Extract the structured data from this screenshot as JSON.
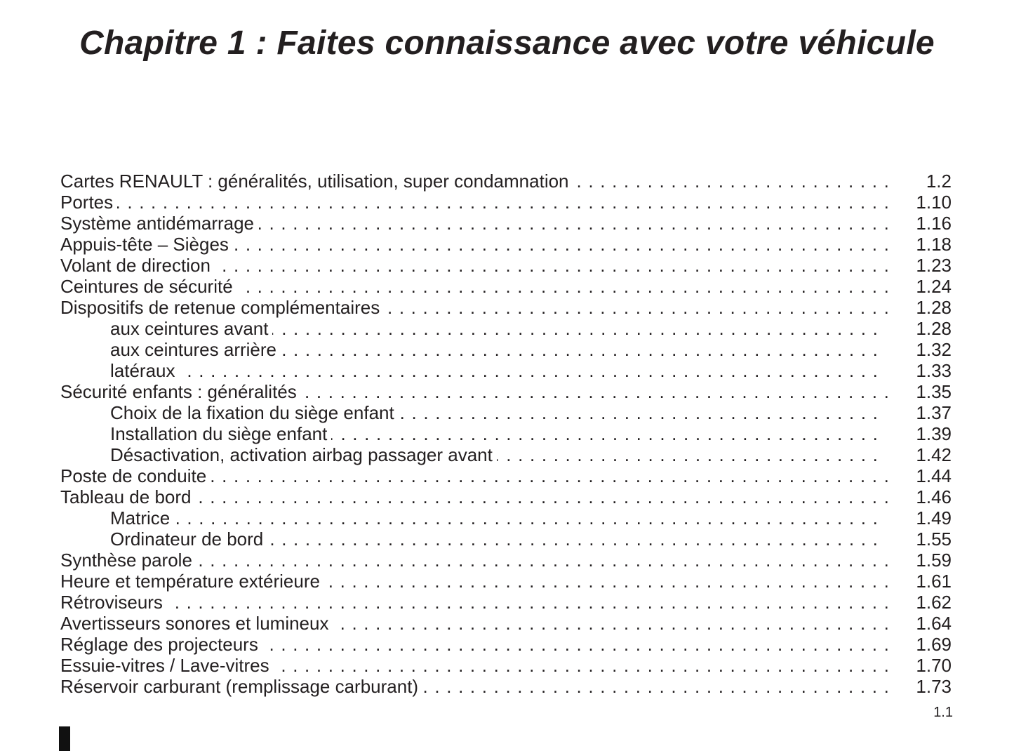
{
  "title": "Chapitre 1 : Faites connaissance avec votre véhicule",
  "toc": [
    {
      "label": "Cartes RENAULT : généralités, utilisation, super condamnation",
      "page": "1.2",
      "level": 1
    },
    {
      "label": "Portes",
      "page": "1.10",
      "level": 1
    },
    {
      "label": "Système antidémarrage",
      "page": "1.16",
      "level": 1
    },
    {
      "label": "Appuis-tête – Sièges",
      "page": "1.18",
      "level": 1
    },
    {
      "label": "Volant de direction",
      "page": "1.23",
      "level": 1
    },
    {
      "label": "Ceintures de sécurité",
      "page": "1.24",
      "level": 1
    },
    {
      "label": "Dispositifs de retenue complémentaires",
      "page": "1.28",
      "level": 1
    },
    {
      "label": "aux ceintures avant",
      "page": "1.28",
      "level": 2
    },
    {
      "label": "aux ceintures arrière",
      "page": "1.32",
      "level": 2
    },
    {
      "label": "latéraux",
      "page": "1.33",
      "level": 2
    },
    {
      "label": "Sécurité enfants : généralités",
      "page": "1.35",
      "level": 1
    },
    {
      "label": "Choix de la fixation du siège enfant",
      "page": "1.37",
      "level": 2
    },
    {
      "label": "Installation du siège enfant",
      "page": "1.39",
      "level": 2
    },
    {
      "label": "Désactivation, activation airbag passager avant",
      "page": "1.42",
      "level": 2
    },
    {
      "label": "Poste de conduite",
      "page": "1.44",
      "level": 1
    },
    {
      "label": "Tableau de bord",
      "page": "1.46",
      "level": 1
    },
    {
      "label": "Matrice",
      "page": "1.49",
      "level": 2
    },
    {
      "label": "Ordinateur de bord",
      "page": "1.55",
      "level": 2
    },
    {
      "label": "Synthèse parole",
      "page": "1.59",
      "level": 1
    },
    {
      "label": "Heure et température extérieure",
      "page": "1.61",
      "level": 1
    },
    {
      "label": "Rétroviseurs",
      "page": "1.62",
      "level": 1
    },
    {
      "label": "Avertisseurs sonores et lumineux",
      "page": "1.64",
      "level": 1
    },
    {
      "label": "Réglage des projecteurs",
      "page": "1.69",
      "level": 1
    },
    {
      "label": "Essuie-vitres / Lave-vitres",
      "page": "1.70",
      "level": 1
    },
    {
      "label": "Réservoir carburant (remplissage carburant)",
      "page": "1.73",
      "level": 1
    }
  ],
  "footer": {
    "page_number": "1.1"
  }
}
